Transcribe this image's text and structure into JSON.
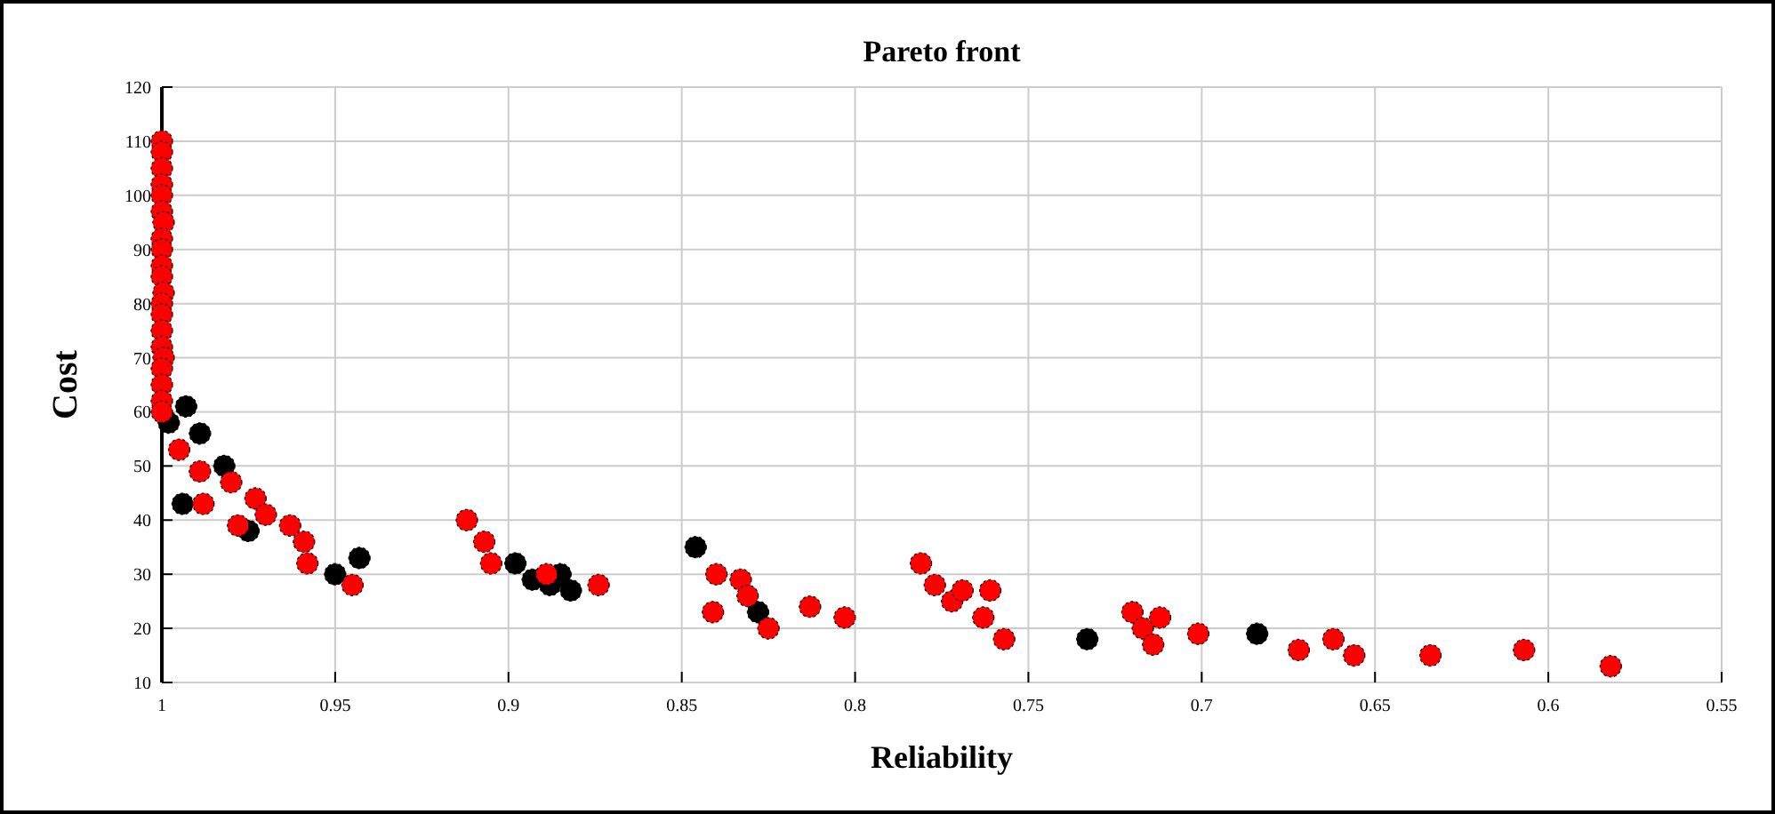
{
  "chart_data": {
    "type": "scatter",
    "title": "Pareto front",
    "xlabel": "Reliability",
    "ylabel": "Cost",
    "xlim": [
      1,
      0.55
    ],
    "xticks": [
      1,
      0.95,
      0.9,
      0.85,
      0.8,
      0.75,
      0.7,
      0.65,
      0.6,
      0.55
    ],
    "ylim": [
      10,
      120
    ],
    "yticks": [
      10,
      20,
      30,
      40,
      50,
      60,
      70,
      80,
      90,
      100,
      110,
      120
    ],
    "grid": true,
    "marker": "circle",
    "series": [
      {
        "color": "#000000",
        "x": [
          0.998,
          0.993,
          0.989,
          0.982,
          0.994,
          0.975,
          0.95,
          0.943,
          0.898,
          0.893,
          0.888,
          0.882,
          0.885,
          0.846,
          0.828,
          0.733,
          0.684
        ],
        "values": [
          58,
          61,
          56,
          50,
          43,
          38,
          30,
          33,
          32,
          29,
          28,
          27,
          30,
          35,
          23,
          18,
          19
        ]
      },
      {
        "color": "#ff0000",
        "x": [
          1,
          1,
          1,
          1,
          1,
          1,
          0.9995,
          1,
          1,
          1,
          1,
          0.9995,
          1,
          1,
          1,
          1,
          0.9995,
          1,
          1,
          1,
          1,
          0.995,
          0.989,
          0.988,
          0.98,
          0.978,
          0.973,
          0.97,
          0.963,
          0.959,
          0.958,
          0.945,
          0.912,
          0.907,
          0.905,
          0.889,
          0.874,
          0.84,
          0.841,
          0.833,
          0.831,
          0.825,
          0.813,
          0.803,
          0.781,
          0.777,
          0.772,
          0.769,
          0.761,
          0.763,
          0.757,
          0.72,
          0.717,
          0.712,
          0.714,
          0.701,
          0.672,
          0.662,
          0.656,
          0.634,
          0.607,
          0.582
        ],
        "values": [
          110,
          108,
          105,
          102,
          100,
          97,
          95,
          92,
          90,
          87,
          85,
          82,
          80,
          78,
          75,
          72,
          70,
          68,
          65,
          62,
          60,
          53,
          49,
          43,
          47,
          39,
          44,
          41,
          39,
          36,
          32,
          28,
          40,
          36,
          32,
          30,
          28,
          30,
          23,
          29,
          26,
          20,
          24,
          22,
          32,
          28,
          25,
          27,
          27,
          22,
          18,
          23,
          20,
          22,
          17,
          19,
          16,
          18,
          15,
          15,
          16,
          13
        ]
      }
    ]
  }
}
